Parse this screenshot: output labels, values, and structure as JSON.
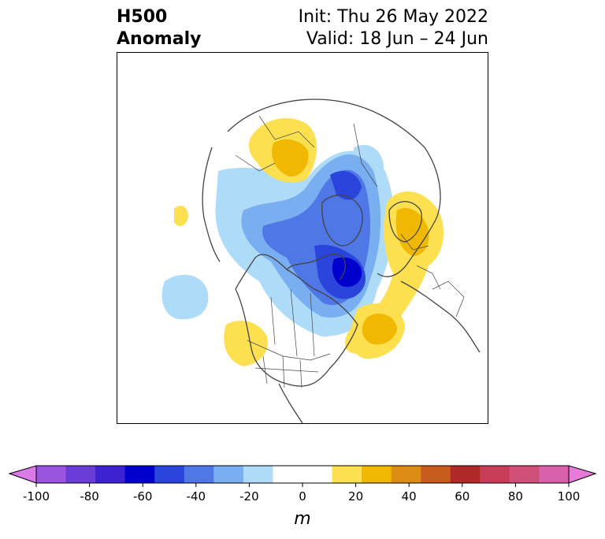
{
  "title": {
    "variable": "H500",
    "field": "Anomaly",
    "init": "Init: Thu 26 May 2022",
    "valid": "Valid: 18 Jun – 24 Jun"
  },
  "colorbar": {
    "units": "m",
    "ticks": [
      "-100",
      "-80",
      "-60",
      "-40",
      "-20",
      "0",
      "20",
      "40",
      "60",
      "80",
      "100"
    ],
    "under_color": "#d97ae8",
    "over_color": "#e87ad8",
    "colors": [
      "#d97ae8",
      "#9a55e0",
      "#6a3cd8",
      "#3c22d0",
      "#0000cc",
      "#2a44dc",
      "#4f78e6",
      "#79aef0",
      "#aedcf8",
      "#ffffff",
      "#ffffff",
      "#fde050",
      "#f0b800",
      "#dc8c14",
      "#c85c1c",
      "#b02828",
      "#c83c5a",
      "#d0507a",
      "#d860a8",
      "#e87ad8"
    ]
  },
  "map": {
    "projection": "north-polar-stereographic",
    "anomaly_colors": {
      "neg_10_20": "#aedcf8",
      "neg_20_30": "#79aef0",
      "neg_30_40": "#4f78e6",
      "neg_40_50": "#2a44dc",
      "neg_50_60": "#0000cc",
      "pos_10_20": "#fde050",
      "pos_20_30": "#f0b800"
    },
    "coastline_color": "#444444"
  }
}
